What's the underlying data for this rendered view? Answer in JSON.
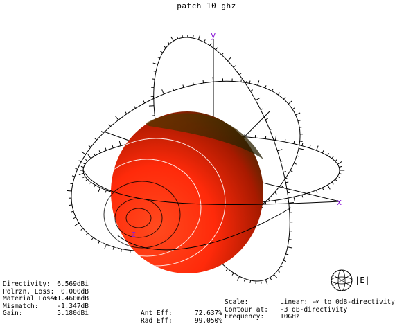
{
  "title": "patch 10 ghz",
  "axes": {
    "x_label": "x",
    "y_label": "y",
    "z_label": "z",
    "axis_color": "#8a1bd6"
  },
  "pattern_colors": {
    "main": "#ff2a0a",
    "dark": "#3a2a00",
    "contour": "#ffffff"
  },
  "stats_left": [
    {
      "label": "Directivity:",
      "value": "6.569dBi"
    },
    {
      "label": "Polrzn. Loss:",
      "value": "0.000dB"
    },
    {
      "label": "Material Loss:",
      "value": "-41.460mdB"
    },
    {
      "label": "Mismatch:",
      "value": "-1.347dB"
    },
    {
      "label": "Gain:",
      "value": "5.180dBi"
    }
  ],
  "stats_mid": [
    {
      "label": "Ant Eff:",
      "value": "72.637%"
    },
    {
      "label": "Rad Eff:",
      "value": "99.050%"
    }
  ],
  "stats_right": [
    {
      "label": "Scale:",
      "value": "Linear: -∞ to 0dB-directivity"
    },
    {
      "label": "Contour at:",
      "value": "-3 dB-directivity"
    },
    {
      "label": "Frequency:",
      "value": "10GHz"
    }
  ],
  "legend": {
    "label": "|E|",
    "icon": "sphere-icon"
  }
}
